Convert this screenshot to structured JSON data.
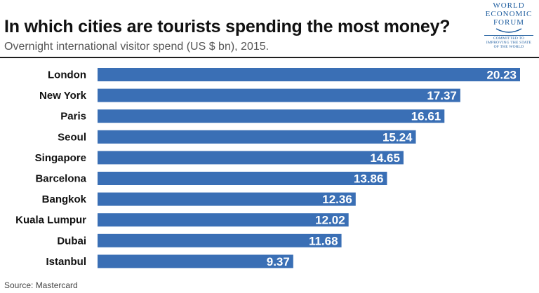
{
  "header": {
    "title": "In which cities are tourists spending the most money?",
    "subtitle": "Overnight international visitor spend (US $ bn), 2015."
  },
  "logo": {
    "icon": "world-economic-forum-logo",
    "line1": "WORLD",
    "line2": "ECONOMIC",
    "line3": "FORUM",
    "tag1": "COMMITTED TO",
    "tag2": "IMPROVING THE STATE",
    "tag3": "OF THE WORLD"
  },
  "source": "Source: Mastercard",
  "chart_data": {
    "type": "bar",
    "orientation": "horizontal",
    "categories": [
      "London",
      "New York",
      "Paris",
      "Seoul",
      "Singapore",
      "Barcelona",
      "Bangkok",
      "Kuala Lumpur",
      "Dubai",
      "Istanbul"
    ],
    "values": [
      20.23,
      17.37,
      16.61,
      15.24,
      14.65,
      13.86,
      12.36,
      12.02,
      11.68,
      9.37
    ],
    "value_labels": [
      "20.23",
      "17.37",
      "16.61",
      "15.24",
      "14.65",
      "13.86",
      "12.36",
      "12.02",
      "11.68",
      "9.37"
    ],
    "xlim": [
      0,
      20.23
    ],
    "bar_color": "#3a6fb5",
    "label_color": "#ffffff",
    "grid": false,
    "legend": "none"
  }
}
